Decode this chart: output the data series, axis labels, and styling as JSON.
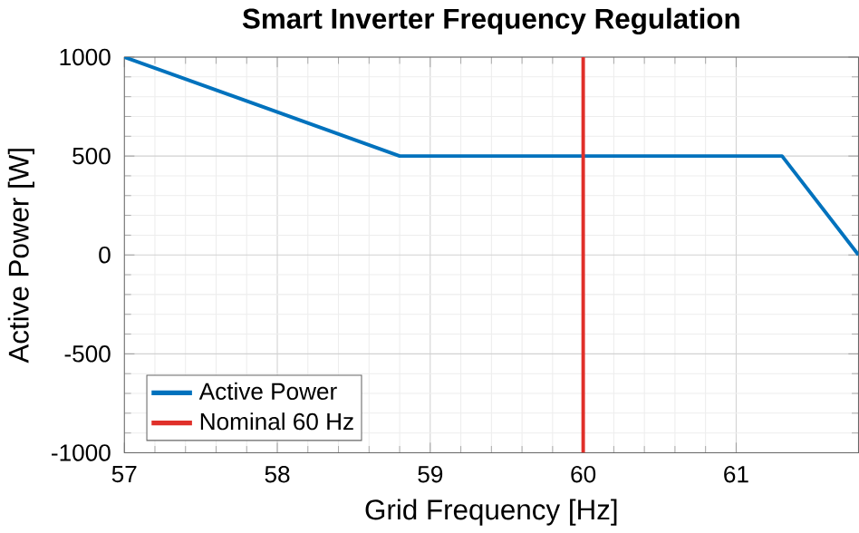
{
  "chart_data": {
    "type": "line",
    "title": "Smart Inverter Frequency Regulation",
    "xlabel": "Grid Frequency [Hz]",
    "ylabel": "Active Power [W]",
    "x": [
      57,
      58.8,
      61.3,
      61.8
    ],
    "series": [
      {
        "name": "Active Power",
        "color": "#0072bd",
        "values": [
          1000,
          500,
          500,
          0
        ]
      },
      {
        "name": "Nominal 60 Hz",
        "color": "#e0302a",
        "x": [
          60,
          60
        ],
        "values": [
          -1000,
          1000
        ]
      }
    ],
    "xlim": [
      57,
      61.8
    ],
    "ylim": [
      -1000,
      1000
    ],
    "xticks": [
      57,
      58,
      59,
      60,
      61
    ],
    "yticks": [
      -1000,
      -500,
      0,
      500,
      1000
    ],
    "grid": true,
    "legend": "bottom left",
    "marker": "none",
    "line_style": "solid"
  }
}
